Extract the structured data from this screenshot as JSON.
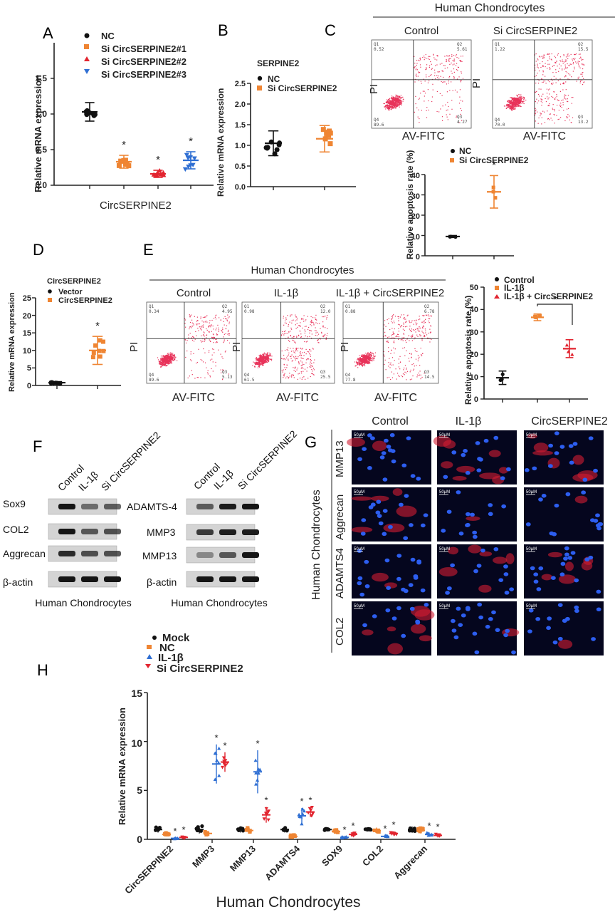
{
  "panel_letters": [
    "A",
    "B",
    "C",
    "D",
    "E",
    "F",
    "G",
    "H"
  ],
  "panelA": {
    "ylabel": "Relative mRNA expression",
    "xlabel": "CircSERPINE2",
    "yticks": [
      "0.0",
      "0.5",
      "1.0",
      "1.5"
    ],
    "legend": [
      "NC",
      "Si CircSERPINE2#1",
      "Si CircSERPINE2#2",
      "Si CircSERPINE2#3"
    ],
    "sig": "*"
  },
  "panelB": {
    "title": "SERPINE2",
    "ylabel": "Relative mRNA expression",
    "yticks": [
      "0.0",
      "0.5",
      "1.0",
      "1.5",
      "2.0",
      "2.5"
    ],
    "legend": [
      "NC",
      "Si CircSERPINE2"
    ]
  },
  "panelC": {
    "header": "Human Chondrocytes",
    "plots": [
      {
        "label": "Control",
        "q1": "Q1\n0.52",
        "q2": "Q2\n5.61",
        "q3": "Q3\n4.27",
        "q4": "Q4\n89.6"
      },
      {
        "label": "Si CircSERPINE2",
        "q1": "Q1\n1.22",
        "q2": "Q2\n15.5",
        "q3": "Q3\n13.2",
        "q4": "Q4\n70.0"
      }
    ],
    "xaxis": "AV-FITC",
    "yaxis": "PI",
    "rate": {
      "ylabel": "Relative apoptosis rate (%)",
      "yticks": [
        "0",
        "10",
        "20",
        "30",
        "40"
      ],
      "legend": [
        "NC",
        "Si CircSERPINE2"
      ],
      "sig": "*"
    }
  },
  "panelD": {
    "title": "CircSERPINE2",
    "ylabel": "Relative mRNA expression",
    "yticks": [
      "0",
      "5",
      "10",
      "15",
      "20",
      "25"
    ],
    "legend": [
      "Vector",
      "CircSERPINE2"
    ],
    "sig": "*"
  },
  "panelE": {
    "header": "Human Chondrocytes",
    "plots": [
      {
        "label": "Control",
        "q1": "Q1\n0.34",
        "q2": "Q2\n4.95",
        "q3": "Q3\n5.13",
        "q4": "Q4\n89.6"
      },
      {
        "label": "IL-1β",
        "q1": "Q1\n0.98",
        "q2": "Q2\n12.0",
        "q3": "Q3\n25.5",
        "q4": "Q4\n61.5"
      },
      {
        "label": "IL-1β + CircSERPINE2",
        "q1": "Q1\n0.88",
        "q2": "Q2\n6.78",
        "q3": "Q3\n14.5",
        "q4": "Q4\n77.8"
      }
    ],
    "xaxis": "AV-FITC",
    "yaxis": "PI",
    "rate": {
      "ylabel": "Relative apoptosis rate (%)",
      "yticks": [
        "0",
        "10",
        "20",
        "30",
        "40",
        "50"
      ],
      "legend": [
        "Control",
        "IL-1β",
        "IL-1β + CircSERPINE2"
      ],
      "sig": "*"
    }
  },
  "panelF": {
    "left": {
      "lanes": [
        "Control",
        "IL-1β",
        "Si CircSERPINE2"
      ],
      "rows": [
        "Sox9",
        "COL2",
        "Aggrecan",
        "β-actin"
      ],
      "footer": "Human Chondrocytes"
    },
    "right": {
      "lanes": [
        "Control",
        "IL-1β",
        "Si CircSERPINE2"
      ],
      "rows": [
        "ADAMTS-4",
        "MMP3",
        "MMP13",
        "β-actin"
      ],
      "footer": "Human Chondrocytes"
    }
  },
  "panelG": {
    "cols": [
      "Control",
      "IL-1β",
      "CircSERPINE2"
    ],
    "rows": [
      "MMP13",
      "Aggrecan",
      "ADAMTS4",
      "COL2"
    ],
    "side": "Human Chondrocytes",
    "scale": "50μM"
  },
  "panelH": {
    "legend": [
      "Mock",
      "NC",
      "IL-1β",
      "Si CircSERPINE2"
    ],
    "ylabel": "Relative mRNA expression",
    "yticks": [
      "0",
      "5",
      "10",
      "15"
    ],
    "xlabel": "Human Chondrocytes",
    "sig": "*"
  },
  "chart_data": [
    {
      "type": "scatter",
      "panel": "A",
      "categories": [
        "NC",
        "Si CircSERPINE2#1",
        "Si CircSERPINE2#2",
        "Si CircSERPINE2#3"
      ],
      "values": [
        1.03,
        0.33,
        0.16,
        0.35
      ],
      "error": [
        0.13,
        0.09,
        0.05,
        0.12
      ],
      "xlabel": "CircSERPINE2",
      "ylabel": "Relative mRNA expression",
      "ylim": [
        0,
        2.0
      ],
      "colors": [
        "#111111",
        "#ef8533",
        "#e2242f",
        "#2f6fd3"
      ]
    },
    {
      "type": "scatter",
      "panel": "B",
      "title": "SERPINE2",
      "categories": [
        "NC",
        "Si CircSERPINE2"
      ],
      "values": [
        1.05,
        1.16
      ],
      "error": [
        0.3,
        0.32
      ],
      "ylabel": "Relative mRNA expression",
      "ylim": [
        0,
        2.5
      ],
      "colors": [
        "#111111",
        "#ef8533"
      ]
    },
    {
      "type": "scatter",
      "panel": "C",
      "categories": [
        "NC",
        "Si CircSERPINE2"
      ],
      "values": [
        9.5,
        31.5
      ],
      "error": [
        0.5,
        8
      ],
      "ylabel": "Relative apoptosis rate (%)",
      "ylim": [
        0,
        40
      ],
      "colors": [
        "#111111",
        "#ef8533"
      ]
    },
    {
      "type": "scatter",
      "panel": "D",
      "title": "CircSERPINE2",
      "categories": [
        "Vector",
        "CircSERPINE2"
      ],
      "values": [
        0.8,
        10.0
      ],
      "error": [
        0.3,
        4.0
      ],
      "ylabel": "Relative mRNA expression",
      "ylim": [
        0,
        25
      ],
      "colors": [
        "#111111",
        "#ef8533"
      ]
    },
    {
      "type": "scatter",
      "panel": "E",
      "categories": [
        "Control",
        "IL-1β",
        "IL-1β + CircSERPINE2"
      ],
      "values": [
        9.5,
        36.5,
        22.5
      ],
      "error": [
        3.0,
        1.5,
        4.0
      ],
      "ylabel": "Relative apoptosis rate (%)",
      "ylim": [
        0,
        50
      ],
      "colors": [
        "#111111",
        "#ef8533",
        "#e2242f"
      ]
    },
    {
      "type": "scatter",
      "panel": "H",
      "categories": [
        "CircSERPINE2",
        "MMP3",
        "MMP13",
        "ADAMTS4",
        "SOX9",
        "COL2",
        "Aggrecan"
      ],
      "series": [
        {
          "name": "Mock",
          "values": [
            1.0,
            1.0,
            1.0,
            1.0,
            1.0,
            1.0,
            1.0
          ],
          "error": [
            0.3,
            0.4,
            0.3,
            0.3,
            0.2,
            0.2,
            0.3
          ]
        },
        {
          "name": "NC",
          "values": [
            0.5,
            0.6,
            0.9,
            0.3,
            0.8,
            0.9,
            0.9
          ],
          "error": [
            0.2,
            0.2,
            0.3,
            0.2,
            0.2,
            0.3,
            0.3
          ]
        },
        {
          "name": "IL-1β",
          "values": [
            0.1,
            7.7,
            6.9,
            2.4,
            0.2,
            0.3,
            0.5
          ],
          "error": [
            0.05,
            2.0,
            2.2,
            0.8,
            0.1,
            0.1,
            0.2
          ]
        },
        {
          "name": "Si CircSERPINE2",
          "values": [
            0.2,
            7.9,
            2.5,
            2.8,
            0.5,
            0.6,
            0.4
          ],
          "error": [
            0.1,
            1.0,
            0.8,
            0.5,
            0.2,
            0.2,
            0.2
          ]
        }
      ],
      "ylabel": "Relative mRNA expression",
      "xlabel": "Human Chondrocytes",
      "ylim": [
        0,
        15
      ],
      "colors": [
        "#111111",
        "#ef8533",
        "#2f6fd3",
        "#e2242f"
      ]
    }
  ]
}
